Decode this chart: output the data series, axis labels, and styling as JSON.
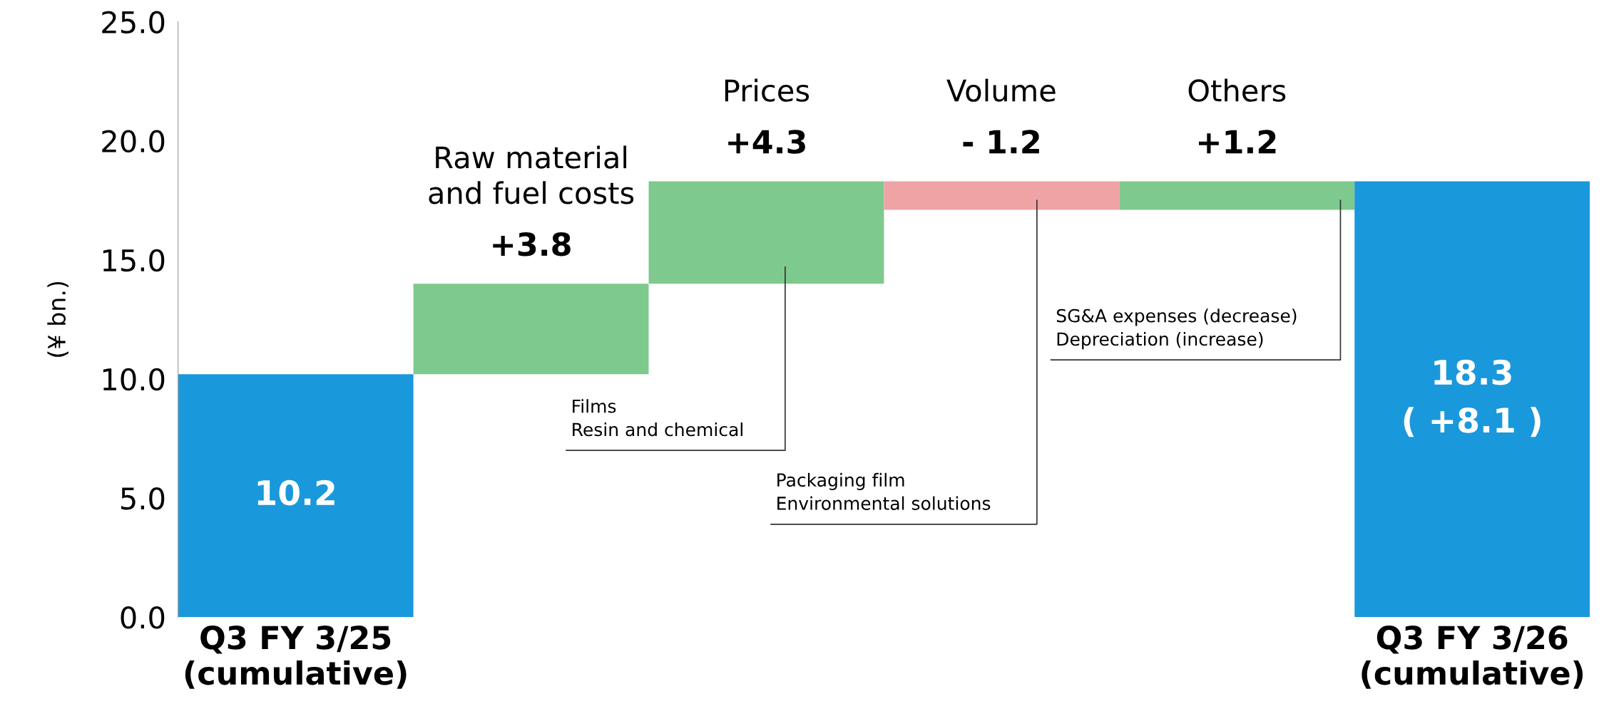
{
  "chart_data": {
    "type": "bar",
    "ylabel": "(¥ bn.)",
    "categories": [
      "Q3 FY 3/25\n(cumulative)",
      "Raw material\nand fuel costs",
      "Prices",
      "Volume",
      "Others",
      "Q3 FY 3/26\n(cumulative)"
    ],
    "values": [
      10.2,
      3.8,
      4.3,
      -1.2,
      1.2,
      18.3
    ],
    "base": [
      0,
      10.2,
      14.0,
      18.3,
      17.1,
      0
    ],
    "colors": [
      "#1a98dc",
      "#7ec98d",
      "#7ec98d",
      "#f0a3a5",
      "#7ec98d",
      "#1a98dc"
    ],
    "value_labels": [
      "10.2",
      "+3.8",
      "+4.3",
      "- 1.2",
      "+1.2",
      "18.3\n( +8.1 )"
    ],
    "ylim": [
      0,
      25
    ],
    "yticks": [
      {
        "value": 0,
        "label": "0.0"
      },
      {
        "value": 5,
        "label": "5.0"
      },
      {
        "value": 10,
        "label": "10.0"
      },
      {
        "value": 15,
        "label": "15.0"
      },
      {
        "value": 20,
        "label": "20.0"
      },
      {
        "value": 25,
        "label": "25.0"
      }
    ],
    "annotations": [
      "Films\nResin and chemical",
      "Packaging film\nEnvironmental solutions",
      "SG&A expenses (decrease)\nDepreciation (increase)"
    ],
    "grid": false
  }
}
